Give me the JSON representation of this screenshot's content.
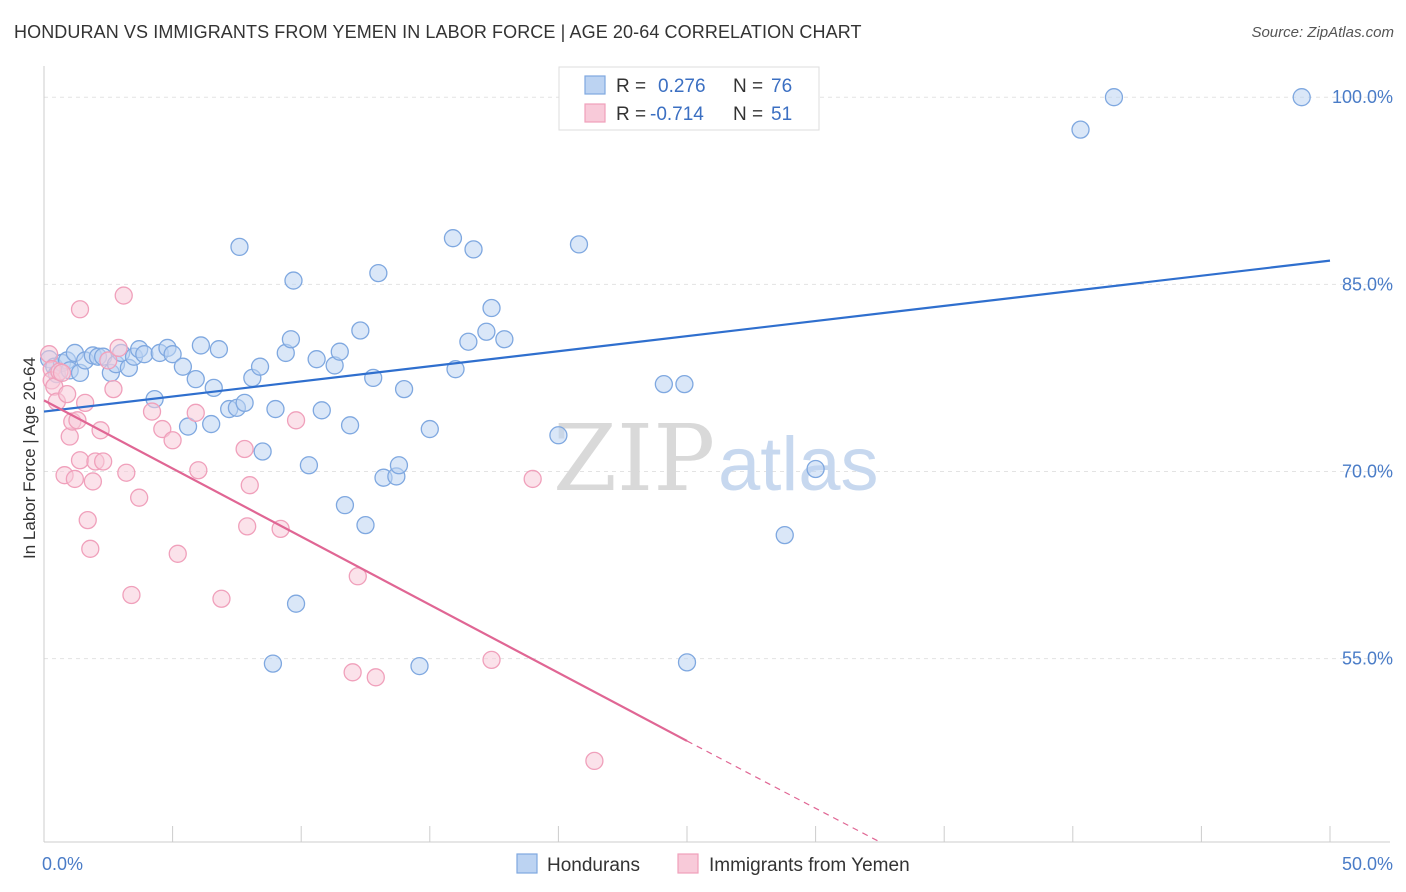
{
  "title": "HONDURAN VS IMMIGRANTS FROM YEMEN IN LABOR FORCE | AGE 20-64 CORRELATION CHART",
  "source": "Source: ZipAtlas.com",
  "watermark": {
    "zip": "ZIP",
    "atlas": "atlas"
  },
  "chart_data": {
    "type": "scatter",
    "title": "HONDURAN VS IMMIGRANTS FROM YEMEN IN LABOR FORCE | AGE 20-64 CORRELATION CHART",
    "xlabel": "",
    "ylabel": "In Labor Force | Age 20-64",
    "xlim": [
      0,
      50
    ],
    "ylim": [
      40.3,
      102.5
    ],
    "x_tick_labels": [
      {
        "value": 0,
        "label": "0.0%"
      },
      {
        "value": 50,
        "label": "50.0%"
      }
    ],
    "y_tick_labels": [
      {
        "value": 100,
        "label": "100.0%"
      },
      {
        "value": 85,
        "label": "85.0%"
      },
      {
        "value": 70,
        "label": "70.0%"
      },
      {
        "value": 55,
        "label": "55.0%"
      }
    ],
    "grid": true,
    "legend": {
      "position": "top-center",
      "rows": [
        {
          "r_label": "R =",
          "r_value": "0.276",
          "n_label": "N =",
          "n_value": "76"
        },
        {
          "r_label": "R =",
          "r_value": "-0.714",
          "n_label": "N =",
          "n_value": "51"
        }
      ]
    },
    "series": [
      {
        "name": "Hondurans",
        "color": "#7fa8e0",
        "fill": "#bcd3f2",
        "line_color": "#2f6fce",
        "trend": {
          "x0": 0,
          "y0": 74.8,
          "x1": 50,
          "y1": 86.9,
          "dashed_from_x": null
        },
        "points": [
          [
            0.2,
            79.0
          ],
          [
            0.4,
            78.4
          ],
          [
            0.5,
            77.8
          ],
          [
            0.7,
            78.7
          ],
          [
            0.9,
            78.9
          ],
          [
            1.0,
            78.1
          ],
          [
            1.2,
            79.5
          ],
          [
            1.4,
            77.9
          ],
          [
            1.6,
            78.9
          ],
          [
            1.9,
            79.3
          ],
          [
            2.1,
            79.2
          ],
          [
            2.3,
            79.2
          ],
          [
            2.6,
            77.9
          ],
          [
            2.8,
            78.6
          ],
          [
            3.0,
            79.5
          ],
          [
            3.3,
            78.3
          ],
          [
            3.5,
            79.2
          ],
          [
            3.7,
            79.8
          ],
          [
            3.9,
            79.4
          ],
          [
            4.3,
            75.8
          ],
          [
            4.5,
            79.5
          ],
          [
            4.8,
            79.9
          ],
          [
            5.0,
            79.4
          ],
          [
            5.4,
            78.4
          ],
          [
            5.6,
            73.6
          ],
          [
            5.9,
            77.4
          ],
          [
            6.1,
            80.1
          ],
          [
            6.5,
            73.8
          ],
          [
            6.6,
            76.7
          ],
          [
            6.8,
            79.8
          ],
          [
            7.2,
            75.0
          ],
          [
            7.5,
            75.1
          ],
          [
            7.6,
            88.0
          ],
          [
            7.8,
            75.5
          ],
          [
            8.1,
            77.5
          ],
          [
            8.4,
            78.4
          ],
          [
            8.5,
            71.6
          ],
          [
            8.9,
            54.6
          ],
          [
            9.0,
            75.0
          ],
          [
            9.4,
            79.5
          ],
          [
            9.6,
            80.6
          ],
          [
            9.7,
            85.3
          ],
          [
            9.8,
            59.4
          ],
          [
            10.3,
            70.5
          ],
          [
            10.6,
            79.0
          ],
          [
            10.8,
            74.9
          ],
          [
            11.3,
            78.5
          ],
          [
            11.5,
            79.6
          ],
          [
            11.7,
            67.3
          ],
          [
            11.9,
            73.7
          ],
          [
            12.3,
            81.3
          ],
          [
            12.5,
            65.7
          ],
          [
            12.8,
            77.5
          ],
          [
            13.0,
            85.9
          ],
          [
            13.2,
            69.5
          ],
          [
            13.7,
            69.6
          ],
          [
            13.8,
            70.5
          ],
          [
            14.0,
            76.6
          ],
          [
            14.6,
            54.4
          ],
          [
            15.0,
            73.4
          ],
          [
            15.9,
            88.7
          ],
          [
            16.0,
            78.2
          ],
          [
            16.5,
            80.4
          ],
          [
            16.7,
            87.8
          ],
          [
            17.2,
            81.2
          ],
          [
            17.4,
            83.1
          ],
          [
            17.9,
            80.6
          ],
          [
            20.0,
            72.9
          ],
          [
            20.8,
            88.2
          ],
          [
            24.1,
            77.0
          ],
          [
            24.9,
            77.0
          ],
          [
            25.0,
            54.7
          ],
          [
            28.8,
            64.9
          ],
          [
            30.0,
            70.2
          ],
          [
            40.3,
            97.4
          ],
          [
            41.6,
            100.0
          ],
          [
            48.9,
            100.0
          ]
        ]
      },
      {
        "name": "Immigrants from Yemen",
        "color": "#f0a0bb",
        "fill": "#f8cad9",
        "line_color": "#e06694",
        "trend": {
          "x0": 0,
          "y0": 75.7,
          "x1": 25.0,
          "y1": 48.4,
          "dashed_from_x": 25.0,
          "dashed_to_x": 32.5,
          "dashed_to_y": 40.3
        },
        "points": [
          [
            0.2,
            79.4
          ],
          [
            0.3,
            78.2
          ],
          [
            0.3,
            77.3
          ],
          [
            0.4,
            76.8
          ],
          [
            0.5,
            75.6
          ],
          [
            0.6,
            78.0
          ],
          [
            0.7,
            77.9
          ],
          [
            0.8,
            69.7
          ],
          [
            0.9,
            76.2
          ],
          [
            1.0,
            72.8
          ],
          [
            1.1,
            74.0
          ],
          [
            1.2,
            69.4
          ],
          [
            1.3,
            74.1
          ],
          [
            1.4,
            83.0
          ],
          [
            1.4,
            70.9
          ],
          [
            1.6,
            75.5
          ],
          [
            1.7,
            66.1
          ],
          [
            1.8,
            63.8
          ],
          [
            1.9,
            69.2
          ],
          [
            2.0,
            70.8
          ],
          [
            2.2,
            73.3
          ],
          [
            2.3,
            70.8
          ],
          [
            2.5,
            78.9
          ],
          [
            2.7,
            76.6
          ],
          [
            2.9,
            79.9
          ],
          [
            3.1,
            84.1
          ],
          [
            3.2,
            69.9
          ],
          [
            3.4,
            60.1
          ],
          [
            3.7,
            67.9
          ],
          [
            4.2,
            74.8
          ],
          [
            4.6,
            73.4
          ],
          [
            5.0,
            72.5
          ],
          [
            5.2,
            63.4
          ],
          [
            5.9,
            74.7
          ],
          [
            6.0,
            70.1
          ],
          [
            6.9,
            59.8
          ],
          [
            7.8,
            71.8
          ],
          [
            7.9,
            65.6
          ],
          [
            8.0,
            68.9
          ],
          [
            9.2,
            65.4
          ],
          [
            9.8,
            74.1
          ],
          [
            12.0,
            53.9
          ],
          [
            12.2,
            61.6
          ],
          [
            12.9,
            53.5
          ],
          [
            17.4,
            54.9
          ],
          [
            19.0,
            69.4
          ],
          [
            21.4,
            46.8
          ]
        ]
      }
    ]
  }
}
